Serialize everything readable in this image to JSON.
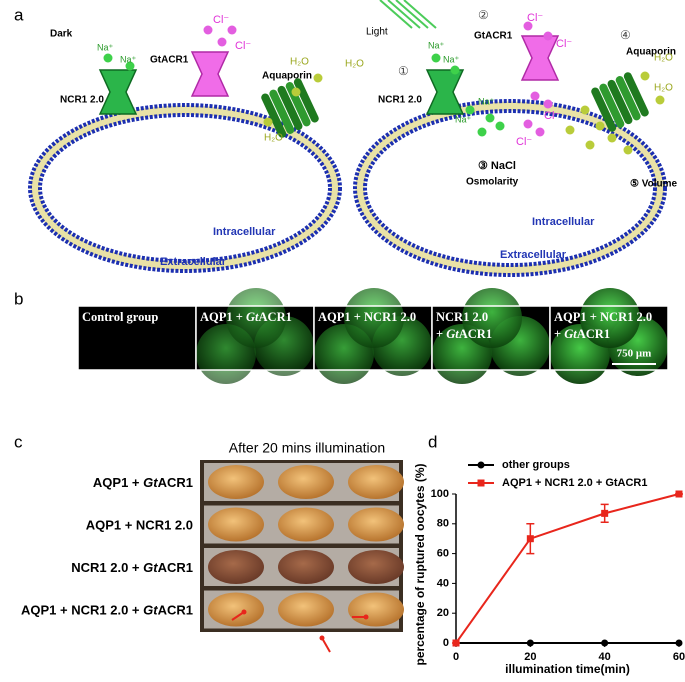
{
  "panel_a": {
    "label": "a",
    "left_labels": [
      "Dark",
      "Na⁺",
      "Na⁺",
      "GtACR1",
      "Cl⁻",
      "Cl⁻",
      "NCR1 2.0",
      "Aquaporin",
      "H₂O",
      "H₂O",
      "H₂O",
      "Intracellular",
      "Extracellular"
    ],
    "right_labels": [
      "Light",
      "Na⁺",
      "Na⁺",
      "①",
      "②",
      "GtACR1",
      "Cl⁻",
      "Cl⁻",
      "NCR1 2.0",
      "④",
      "Aquaporin",
      "H₂O",
      "H₂O",
      "Na⁺",
      "Na⁺",
      "Cl⁻",
      "Cl⁻",
      "③ NaCl",
      "Osmolarity",
      "⑤ Volume",
      "Intracellular",
      "Extracellular"
    ]
  },
  "panel_b": {
    "label": "b",
    "tiles": [
      [
        [
          "Control group"
        ]
      ],
      [
        [
          "AQP1 + ",
          "Gt",
          "ACR1"
        ]
      ],
      [
        [
          "AQP1 + NCR1 2.0"
        ]
      ],
      [
        [
          "NCR1 2.0"
        ],
        [
          "+ ",
          "Gt",
          "ACR1"
        ]
      ],
      [
        [
          "AQP1 + NCR1 2.0"
        ],
        [
          "+ ",
          "Gt",
          "ACR1"
        ]
      ]
    ],
    "scale_bar": "750 μm"
  },
  "panel_c": {
    "label": "c",
    "heading": "After 20 mins illumination",
    "rows": [
      [
        "AQP1 + ",
        "Gt",
        "ACR1"
      ],
      [
        "AQP1 + NCR1 2.0"
      ],
      [
        "NCR1 2.0 + ",
        "Gt",
        "ACR1"
      ],
      [
        "AQP1 + NCR1 2.0 + ",
        "Gt",
        "ACR1"
      ]
    ]
  },
  "panel_d_label": "d",
  "chart_data": {
    "type": "line",
    "xlabel": "illumination time(min)",
    "ylabel": "percentage of ruptured oocytes (%)",
    "x": [
      0,
      20,
      40,
      60
    ],
    "xlim": [
      0,
      60
    ],
    "xticks": [
      0,
      20,
      40,
      60
    ],
    "ylim": [
      0,
      100
    ],
    "yticks": [
      0,
      20,
      40,
      60,
      80,
      100
    ],
    "legend": "upper left",
    "series": [
      {
        "name": "other groups",
        "color": "#000000",
        "values": [
          0,
          0,
          0,
          0
        ]
      },
      {
        "name": "AQP1 + NCR1 2.0 + GtACR1",
        "color": "#e8261c",
        "values": [
          0,
          70,
          87,
          100
        ],
        "errors": [
          0,
          10,
          6,
          0
        ]
      }
    ]
  }
}
